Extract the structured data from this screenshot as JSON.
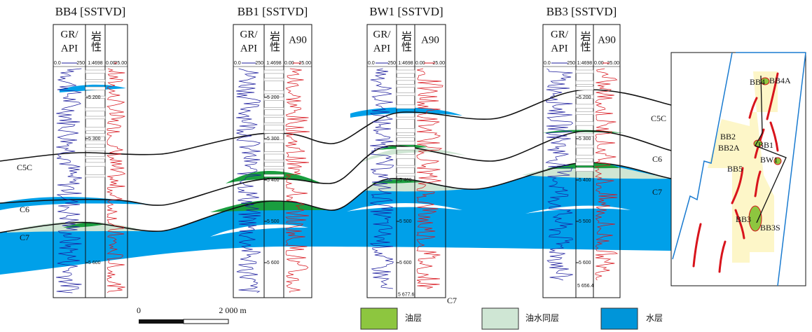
{
  "wells": [
    {
      "name": "BB4 [SSTVD]",
      "gr_header": [
        "GR/",
        "API"
      ],
      "lith_header": "岩性",
      "gr_scale": [
        "0.0",
        "250"
      ],
      "lith_scale": "1:4698",
      "res_scale": [
        "0.00",
        "25.00"
      ],
      "depths": [
        "5 200",
        "5 300",
        "5 600"
      ]
    },
    {
      "name": "BB1 [SSTVD]",
      "gr_header": [
        "GR/",
        "API"
      ],
      "lith_header": "岩性",
      "res_header": "A90",
      "gr_scale": [
        "0.0",
        "250"
      ],
      "lith_scale": "1:4698",
      "res_scale": [
        "0.00",
        "25.00"
      ],
      "depths": [
        "5 200",
        "5 300",
        "5 400",
        "5 500",
        "5 600"
      ]
    },
    {
      "name": "BW1 [SSTVD]",
      "gr_header": [
        "GR/",
        "API"
      ],
      "lith_header": "岩性",
      "res_header": "A90",
      "gr_scale": [
        "0.0",
        "250"
      ],
      "lith_scale": "1:4698",
      "res_scale": [
        "0.00",
        "25.00"
      ],
      "depths": [
        "5 400",
        "5 500",
        "5 600"
      ],
      "td": "5 677.6"
    },
    {
      "name": "BB3 [SSTVD]",
      "gr_header": [
        "GR/",
        "API"
      ],
      "lith_header": "岩性",
      "res_header": "A90",
      "gr_scale": [
        "0.0",
        "250"
      ],
      "lith_scale": "1:4698",
      "res_scale": [
        "0.00",
        "25.00"
      ],
      "depths": [
        "5 200",
        "5 300",
        "5 400",
        "5 500",
        "5 600"
      ],
      "td": "5 656.4"
    }
  ],
  "horizons_left": [
    "C5C",
    "C6",
    "C7"
  ],
  "horizons_right": [
    "C5C",
    "C6",
    "C7"
  ],
  "bottom_label": "C7",
  "scale_bar": {
    "start": "0",
    "end": "2 000 m"
  },
  "legend": [
    "油层",
    "油水同层",
    "水层"
  ],
  "map_labels": [
    "BB4",
    "BB4A",
    "BB2",
    "BB2A",
    "BB1",
    "BW1",
    "BB5",
    "BB3",
    "BB3S"
  ]
}
